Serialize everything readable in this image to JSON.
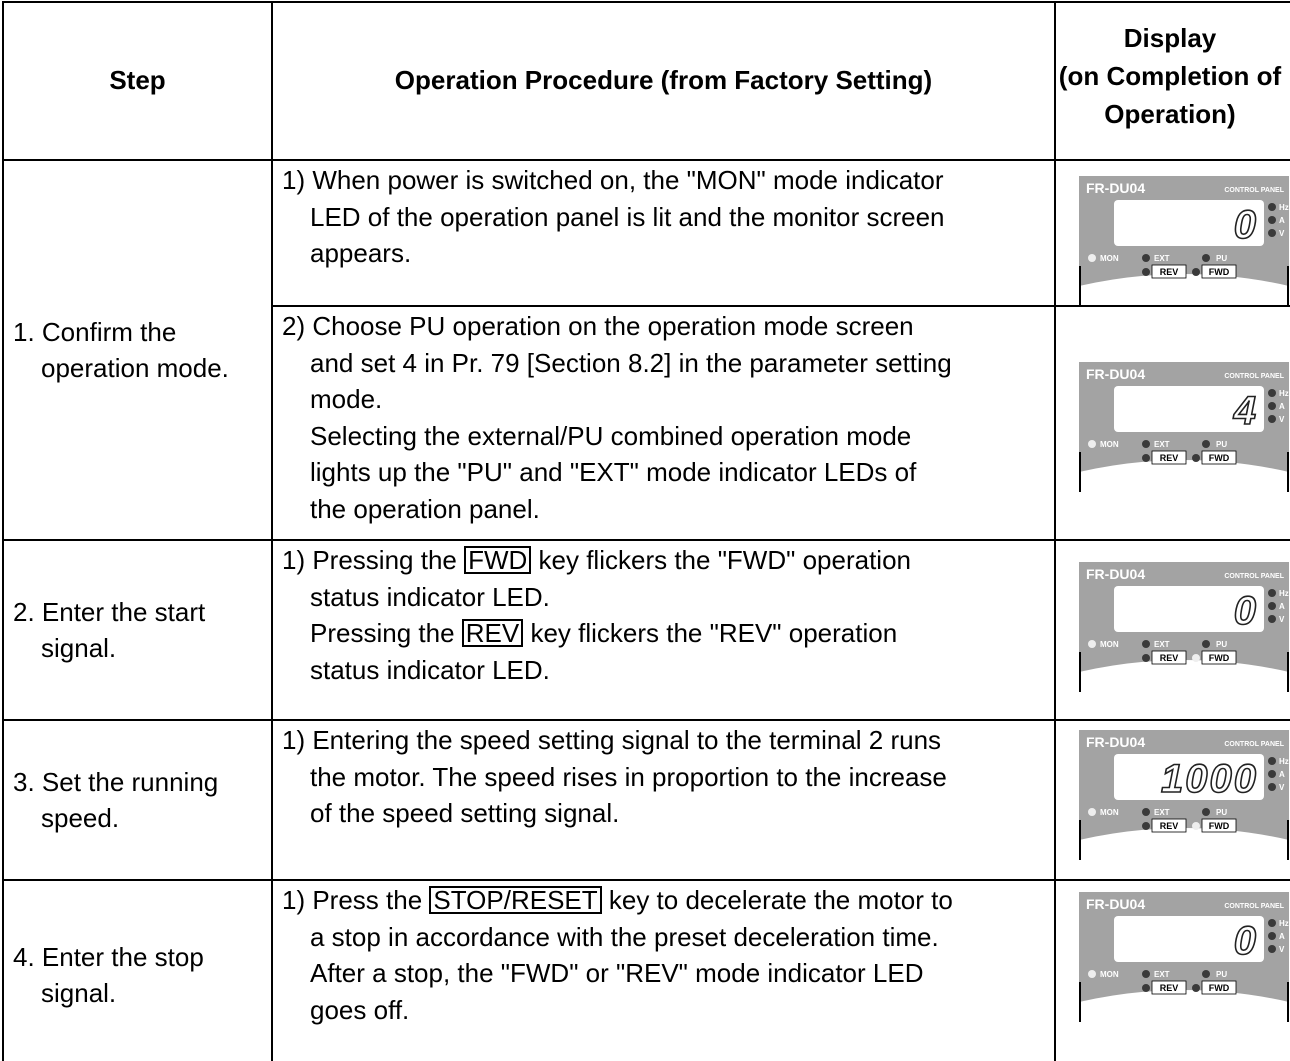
{
  "header": [
    "Step",
    "Operation Procedure (from Factory Setting)",
    [
      "Display",
      "(on Completion of",
      "Operation)"
    ]
  ],
  "panel": {
    "model": "FR-DU04",
    "caption": "CONTROL PANEL",
    "units": [
      "Hz",
      "A",
      "V"
    ],
    "modes": [
      "MON",
      "EXT",
      "PU"
    ],
    "status": [
      "REV",
      "FWD"
    ]
  },
  "rows": [
    {
      "step": [
        "1. Confirm the",
        "operation mode."
      ],
      "procedures": [
        {
          "lines": [
            [
              "1) When power is switched on, the \"MON\" mode indicator"
            ],
            [
              "LED of the operation panel is lit and the monitor screen"
            ],
            [
              "appears."
            ]
          ],
          "display": {
            "digits": "0",
            "dim_leds": []
          }
        },
        {
          "lines": [
            [
              "2) Choose PU operation on the operation mode screen"
            ],
            [
              "and set 4 in Pr. 79 [Section 8.2] in the parameter setting"
            ],
            [
              "mode."
            ],
            [
              "Selecting the external/PU combined operation mode"
            ],
            [
              "lights up the \"PU\" and \"EXT\" mode indicator LEDs of"
            ],
            [
              "the operation panel."
            ]
          ],
          "display": {
            "digits": "4",
            "dim_leds": []
          }
        }
      ]
    },
    {
      "step": [
        "2. Enter the start",
        "signal."
      ],
      "procedures": [
        {
          "lines": [
            [
              "1) Pressing the ",
              {
                "key": "FWD"
              },
              " key flickers the \"FWD\" operation"
            ],
            [
              "status indicator LED."
            ],
            [
              "Pressing the ",
              {
                "key": "REV"
              },
              " key flickers the \"REV\" operation"
            ],
            [
              "status indicator LED."
            ]
          ],
          "display": {
            "digits": "0",
            "dim_leds": [
              "FWD"
            ]
          }
        }
      ]
    },
    {
      "step": [
        "3. Set the running",
        "speed."
      ],
      "procedures": [
        {
          "lines": [
            [
              "1) Entering the speed setting signal to the terminal 2 runs"
            ],
            [
              "the motor. The speed rises in proportion to the increase"
            ],
            [
              "of the speed setting signal."
            ]
          ],
          "display": {
            "digits": "1000",
            "dim_leds": [
              "FWD"
            ]
          }
        }
      ]
    },
    {
      "step": [
        "4. Enter the stop",
        "signal."
      ],
      "procedures": [
        {
          "lines": [
            [
              "1) Press the ",
              {
                "key": "STOP/RESET"
              },
              " key to decelerate the motor to"
            ],
            [
              "a stop in accordance with the preset deceleration time."
            ],
            [
              "After a stop, the \"FWD\" or \"REV\" mode indicator LED"
            ],
            [
              "goes off."
            ]
          ],
          "display": {
            "digits": "0",
            "dim_leds": []
          }
        }
      ]
    }
  ]
}
